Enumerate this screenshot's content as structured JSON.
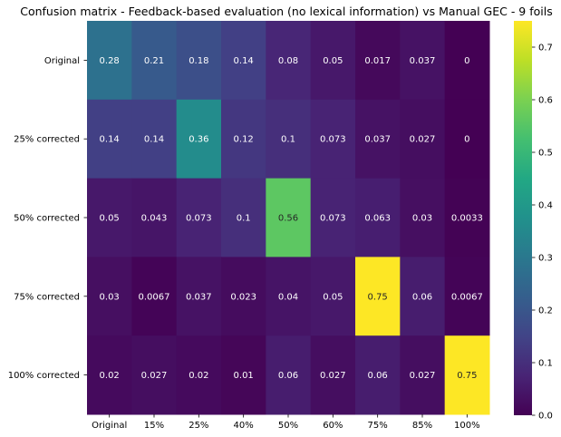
{
  "chart_data": {
    "type": "heatmap",
    "title": "Confusion matrix - Feedback-based evaluation (no lexical information) vs Manual GEC - 9 foils",
    "xlabel": "",
    "ylabel": "",
    "x_categories": [
      "Original",
      "15%",
      "25%",
      "40%",
      "50%",
      "60%",
      "75%",
      "85%",
      "100%"
    ],
    "y_categories": [
      "Original",
      "25% corrected",
      "50% corrected",
      "75% corrected",
      "100% corrected"
    ],
    "values": [
      [
        0.28,
        0.21,
        0.18,
        0.14,
        0.08,
        0.05,
        0.017,
        0.037,
        0
      ],
      [
        0.14,
        0.14,
        0.36,
        0.12,
        0.1,
        0.073,
        0.037,
        0.027,
        0
      ],
      [
        0.05,
        0.043,
        0.073,
        0.1,
        0.56,
        0.073,
        0.063,
        0.03,
        0.0033
      ],
      [
        0.03,
        0.0067,
        0.037,
        0.023,
        0.04,
        0.05,
        0.75,
        0.06,
        0.0067
      ],
      [
        0.02,
        0.027,
        0.02,
        0.01,
        0.06,
        0.027,
        0.06,
        0.027,
        0.75
      ]
    ],
    "labels": [
      [
        "0.28",
        "0.21",
        "0.18",
        "0.14",
        "0.08",
        "0.05",
        "0.017",
        "0.037",
        "0"
      ],
      [
        "0.14",
        "0.14",
        "0.36",
        "0.12",
        "0.1",
        "0.073",
        "0.037",
        "0.027",
        "0"
      ],
      [
        "0.05",
        "0.043",
        "0.073",
        "0.1",
        "0.56",
        "0.073",
        "0.063",
        "0.03",
        "0.0033"
      ],
      [
        "0.03",
        "0.0067",
        "0.037",
        "0.023",
        "0.04",
        "0.05",
        "0.75",
        "0.06",
        "0.0067"
      ],
      [
        "0.02",
        "0.027",
        "0.02",
        "0.01",
        "0.06",
        "0.027",
        "0.06",
        "0.027",
        "0.75"
      ]
    ],
    "colormap": "viridis",
    "color_range": [
      0,
      0.75
    ],
    "colorbar_ticks": [
      "0.0",
      "0.1",
      "0.2",
      "0.3",
      "0.4",
      "0.5",
      "0.6",
      "0.7"
    ],
    "colorbar_tick_values": [
      0,
      0.1,
      0.2,
      0.3,
      0.4,
      0.5,
      0.6,
      0.7
    ]
  }
}
